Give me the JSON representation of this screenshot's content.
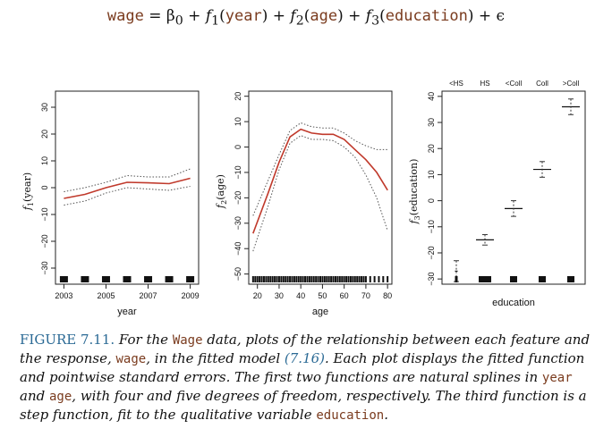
{
  "equation": {
    "lhs": "wage",
    "eq": " = β",
    "sub0": "0",
    "plus1": " + f",
    "sub1": "1",
    "arg1": "year",
    "plus2": " + f",
    "sub2": "2",
    "arg2": "age",
    "plus3": " + f",
    "sub3": "3",
    "arg3": "education",
    "tail": " + ϵ"
  },
  "caption": {
    "label": "FIGURE 7.11.",
    "t1": " For the ",
    "c1": "Wage",
    "t2": " data, plots of the relationship between each feature and the response, ",
    "c2": "wage",
    "t3": ", in the fitted model ",
    "ref": "(7.16)",
    "t4": ". Each plot displays the fitted function and pointwise standard errors. The first two functions are natural splines in ",
    "c3": "year",
    "t5": " and ",
    "c4": "age",
    "t6": ", with four and five degrees of freedom, respectively. The third function is a step function, fit to the qualitative variable ",
    "c5": "education",
    "t7": "."
  },
  "colors": {
    "fit": "#c0392b",
    "band": "#555555",
    "rug": "#111111"
  },
  "chart_data": [
    {
      "type": "line",
      "xlabel": "year",
      "ylabel": "f1(year)",
      "xlim": [
        2002.6,
        2009.4
      ],
      "ylim": [
        -36,
        36
      ],
      "xticks": [
        2003,
        2005,
        2007,
        2009
      ],
      "yticks": [
        -30,
        -20,
        -10,
        0,
        10,
        20,
        30
      ],
      "x": [
        2003,
        2004,
        2005,
        2006,
        2007,
        2008,
        2009
      ],
      "fit": [
        -4,
        -2.5,
        0,
        2,
        1.8,
        1.5,
        3.5
      ],
      "upper": [
        -1.5,
        0,
        2,
        4.5,
        4,
        4,
        7
      ],
      "lower": [
        -6.5,
        -5,
        -2,
        0,
        -0.5,
        -1,
        0.5
      ],
      "rug": [
        2003,
        2004,
        2005,
        2006,
        2007,
        2008,
        2009
      ]
    },
    {
      "type": "line",
      "xlabel": "age",
      "ylabel": "f2(age)",
      "xlim": [
        16,
        82
      ],
      "ylim": [
        -54,
        22
      ],
      "xticks": [
        20,
        30,
        40,
        50,
        60,
        70,
        80
      ],
      "yticks": [
        -50,
        -40,
        -30,
        -20,
        -10,
        0,
        10,
        20
      ],
      "x": [
        18,
        25,
        30,
        35,
        40,
        45,
        50,
        55,
        60,
        65,
        70,
        75,
        80
      ],
      "fit": [
        -34,
        -18,
        -6,
        4,
        7,
        5.5,
        5,
        5,
        3,
        -1,
        -5,
        -10,
        -17
      ],
      "upper": [
        -27,
        -13,
        -3,
        6.5,
        9.5,
        8,
        7.5,
        7.5,
        5.5,
        2.5,
        0.5,
        -1,
        -1
      ],
      "lower": [
        -41,
        -23,
        -9,
        1.5,
        4.5,
        3,
        3,
        2.5,
        0,
        -4,
        -11,
        -20,
        -33
      ],
      "rug": [
        18,
        19,
        20,
        21,
        22,
        23,
        24,
        25,
        26,
        27,
        28,
        29,
        30,
        31,
        32,
        33,
        34,
        35,
        36,
        37,
        38,
        39,
        40,
        41,
        42,
        43,
        44,
        45,
        46,
        47,
        48,
        49,
        50,
        51,
        52,
        53,
        54,
        55,
        56,
        57,
        58,
        59,
        60,
        61,
        62,
        63,
        64,
        65,
        66,
        67,
        68,
        69,
        70,
        72,
        74,
        76,
        78,
        80
      ]
    },
    {
      "type": "step",
      "xlabel": "education",
      "ylabel": "f3(education)",
      "ylim": [
        -32,
        42
      ],
      "yticks": [
        -30,
        -20,
        -10,
        0,
        10,
        20,
        30,
        40
      ],
      "categories": [
        "<HS",
        "HS",
        "<Coll",
        "Coll",
        ">Coll"
      ],
      "values": [
        -27,
        -15,
        -3,
        12,
        36
      ],
      "upper": [
        -23,
        -13,
        0,
        15,
        39
      ],
      "lower": [
        -31,
        -17,
        -6,
        9,
        33
      ]
    }
  ]
}
